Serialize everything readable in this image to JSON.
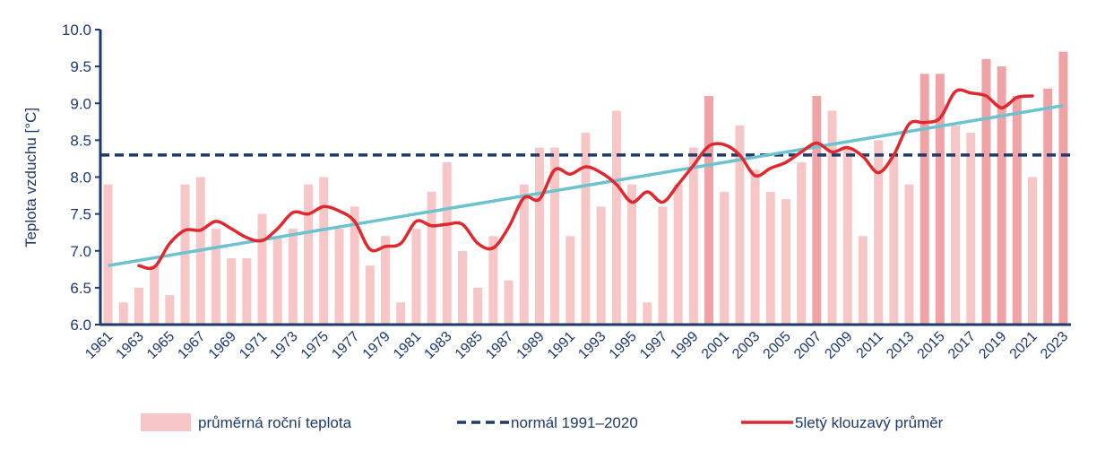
{
  "chart_data": {
    "type": "bar",
    "ylabel": "Teplota vzduchu [°C]",
    "ylim": [
      6.0,
      10.0
    ],
    "yticks": [
      "6.0",
      "6.5",
      "7.0",
      "7.5",
      "8.0",
      "8.5",
      "9.0",
      "9.5",
      "10.0"
    ],
    "x": [
      1961,
      1962,
      1963,
      1964,
      1965,
      1966,
      1967,
      1968,
      1969,
      1970,
      1971,
      1972,
      1973,
      1974,
      1975,
      1976,
      1977,
      1978,
      1979,
      1980,
      1981,
      1982,
      1983,
      1984,
      1985,
      1986,
      1987,
      1988,
      1989,
      1990,
      1991,
      1992,
      1993,
      1994,
      1995,
      1996,
      1997,
      1998,
      1999,
      2000,
      2001,
      2002,
      2003,
      2004,
      2005,
      2006,
      2007,
      2008,
      2009,
      2010,
      2011,
      2012,
      2013,
      2014,
      2015,
      2016,
      2017,
      2018,
      2019,
      2020,
      2021,
      2022,
      2023
    ],
    "xtick_labels": [
      "1961",
      "1963",
      "1965",
      "1967",
      "1969",
      "1971",
      "1973",
      "1975",
      "1977",
      "1979",
      "1981",
      "1983",
      "1985",
      "1987",
      "1989",
      "1991",
      "1993",
      "1995",
      "1997",
      "1999",
      "2001",
      "2003",
      "2005",
      "2007",
      "2009",
      "2011",
      "2013",
      "2015",
      "2017",
      "2019",
      "2021",
      "2023"
    ],
    "series": [
      {
        "name": "průměrná roční teplota",
        "kind": "bar",
        "values": [
          7.9,
          6.3,
          6.5,
          6.8,
          6.4,
          7.9,
          8.0,
          7.3,
          6.9,
          6.9,
          7.5,
          7.2,
          7.3,
          7.9,
          8.0,
          7.3,
          7.6,
          6.8,
          7.2,
          6.3,
          7.3,
          7.8,
          8.2,
          7.0,
          6.5,
          7.2,
          6.6,
          7.9,
          8.4,
          8.4,
          7.2,
          8.6,
          7.6,
          8.9,
          7.9,
          6.3,
          7.6,
          7.9,
          8.4,
          9.1,
          7.8,
          8.7,
          8.1,
          7.8,
          7.7,
          8.2,
          9.1,
          8.9,
          8.4,
          7.2,
          8.5,
          8.3,
          7.9,
          9.4,
          9.4,
          8.7,
          8.6,
          9.6,
          9.5,
          9.1,
          8.0,
          9.2,
          9.7
        ],
        "highlight": [
          2000,
          2007,
          2014,
          2015,
          2018,
          2019,
          2020,
          2022,
          2023
        ]
      },
      {
        "name": "normál 1991–2020",
        "kind": "hline",
        "value": 8.3
      },
      {
        "name": "5letý klouzavý průměr",
        "kind": "line",
        "x": [
          1963,
          1964,
          1965,
          1966,
          1967,
          1968,
          1969,
          1970,
          1971,
          1972,
          1973,
          1974,
          1975,
          1976,
          1977,
          1978,
          1979,
          1980,
          1981,
          1982,
          1983,
          1984,
          1985,
          1986,
          1987,
          1988,
          1989,
          1990,
          1991,
          1992,
          1993,
          1994,
          1995,
          1996,
          1997,
          1998,
          1999,
          2000,
          2001,
          2002,
          2003,
          2004,
          2005,
          2006,
          2007,
          2008,
          2009,
          2010,
          2011,
          2012,
          2013,
          2014,
          2015,
          2016,
          2017,
          2018,
          2019,
          2020,
          2021
        ],
        "values": [
          6.8,
          6.78,
          7.1,
          7.28,
          7.28,
          7.4,
          7.3,
          7.18,
          7.14,
          7.3,
          7.52,
          7.5,
          7.6,
          7.54,
          7.4,
          7.02,
          7.06,
          7.1,
          7.4,
          7.34,
          7.36,
          7.36,
          7.1,
          7.04,
          7.32,
          7.72,
          7.7,
          8.1,
          8.04,
          8.14,
          8.06,
          7.9,
          7.66,
          7.8,
          7.66,
          7.9,
          8.16,
          8.42,
          8.44,
          8.3,
          8.02,
          8.12,
          8.2,
          8.34,
          8.46,
          8.34,
          8.4,
          8.28,
          8.06,
          8.3,
          8.72,
          8.74,
          8.8,
          9.16,
          9.14,
          9.1,
          8.94,
          9.08,
          9.1
        ]
      },
      {
        "name": "trend",
        "kind": "trendline",
        "x": [
          1961,
          2023
        ],
        "values": [
          6.8,
          8.97
        ]
      }
    ]
  },
  "legend": {
    "bar_label": "průměrná roční teplota",
    "normal_label": "normál 1991–2020",
    "moving_avg_label": "5letý klouzavý průměr"
  },
  "colors": {
    "bar": "#f7c6c7",
    "bar_highlight": "#f0a3a6",
    "normal": "#1f3a6e",
    "moving_avg": "#e0282e",
    "trend": "#6cc3d0",
    "axis": "#1f3a6e",
    "text": "#1f3a6e"
  }
}
